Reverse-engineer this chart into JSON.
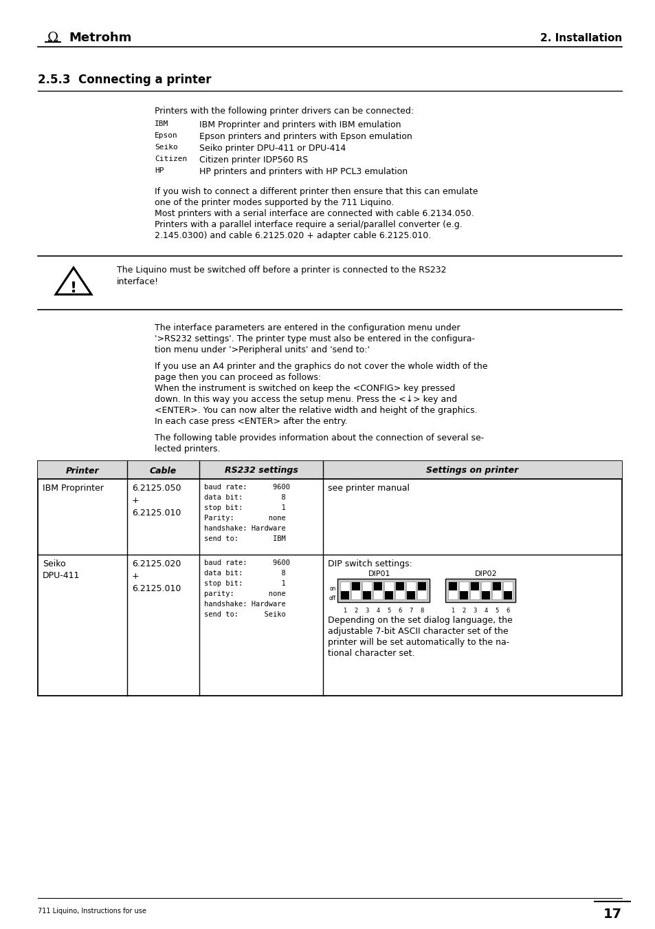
{
  "page_num": "17",
  "header_left": "Metrohm",
  "header_right": "2. Installation",
  "footer_left": "711 Liquino, Instructions for use",
  "section_title": "2.5.3  Connecting a printer",
  "intro_text": "Printers with the following printer drivers can be connected:",
  "printer_list": [
    {
      "code": "IBM",
      "desc": "IBM Proprinter and printers with IBM emulation"
    },
    {
      "code": "Epson",
      "desc": "Epson printers and printers with Epson emulation"
    },
    {
      "code": "Seiko",
      "desc": "Seiko printer DPU-411 or DPU-414"
    },
    {
      "code": "Citizen",
      "desc": "Citizen printer IDP560 RS"
    },
    {
      "code": "HP",
      "desc": "HP printers and printers with HP PCL3 emulation"
    }
  ],
  "para1_lines": [
    "If you wish to connect a different printer then ensure that this can emulate",
    "one of the printer modes supported by the 711 Liquino.",
    "Most printers with a serial interface are connected with cable 6.2134.050.",
    "Printers with a parallel interface require a serial/parallel converter (e.g.",
    "2.145.0300) and cable 6.2125.020 + adapter cable 6.2125.010."
  ],
  "warning_text_lines": [
    "The Liquino must be switched off before a printer is connected to the RS232",
    "interface!"
  ],
  "para2_lines": [
    "The interface parameters are entered in the configuration menu under",
    "'>RS232 settings'. The printer type must also be entered in the configura-",
    "tion menu under '>Peripheral units' and 'send to:'"
  ],
  "para3_lines": [
    "If you use an A4 printer and the graphics do not cover the whole width of the",
    "page then you can proceed as follows:",
    "When the instrument is switched on keep the <CONFIG> key pressed",
    "down. In this way you access the setup menu. Press the <↓> key and",
    "<ENTER>. You can now alter the relative width and height of the graphics.",
    "In each case press <ENTER> after the entry."
  ],
  "para4_lines": [
    "The following table provides information about the connection of several se-",
    "lected printers."
  ],
  "table_headers": [
    "Printer",
    "Cable",
    "RS232 settings",
    "Settings on printer"
  ],
  "table_row1": {
    "printer_lines": [
      "IBM Proprinter"
    ],
    "cable_lines": [
      "6.2125.050",
      "+",
      "6.2125.010"
    ],
    "rs232_lines": [
      "baud rate:      9600",
      "data bit:         8",
      "stop bit:         1",
      "Parity:        none",
      "handshake: Hardware",
      "send to:        IBM"
    ],
    "settings_lines": [
      "see printer manual"
    ]
  },
  "table_row2": {
    "printer_lines": [
      "Seiko",
      "DPU-411"
    ],
    "cable_lines": [
      "6.2125.020",
      "+",
      "6.2125.010"
    ],
    "rs232_lines": [
      "baud rate:      9600",
      "data bit:         8",
      "stop bit:         1",
      "parity:        none",
      "handshake: Hardware",
      "send to:      Seiko"
    ],
    "dip01_label": "DIP01",
    "dip02_label": "DIP02",
    "dip01_pattern": [
      0,
      1,
      0,
      1,
      0,
      1,
      0,
      1
    ],
    "dip02_pattern": [
      1,
      0,
      1,
      0,
      1,
      0
    ],
    "desc_lines": [
      "Depending on the set dialog language, the",
      "adjustable 7-bit ASCII character set of the",
      "printer will be set automatically to the na-",
      "tional character set."
    ]
  },
  "bg_color": "#ffffff",
  "text_color": "#000000"
}
